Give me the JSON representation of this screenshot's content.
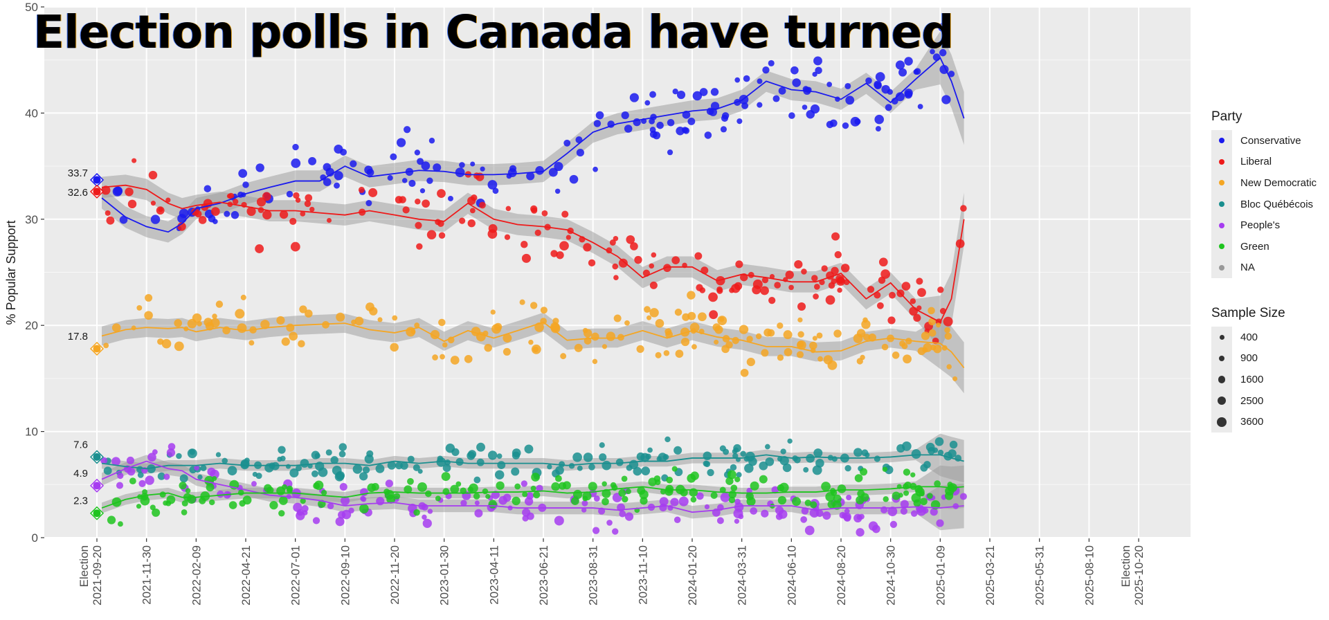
{
  "title": "Election polls in Canada have turned",
  "chart_data": {
    "type": "scatter",
    "title": "Election polls in Canada have turned",
    "xlabel": "",
    "ylabel": "% Popular Support",
    "ylim": [
      0,
      50
    ],
    "yticks": [
      "0",
      "10",
      "20",
      "30",
      "40",
      "50"
    ],
    "xlim": [
      "2021-09-01",
      "2025-11-30"
    ],
    "xticks": [
      {
        "date": "2021-09-20",
        "label": "Election\n2021-09-20"
      },
      {
        "date": "2021-11-30",
        "label": "2021-11-30"
      },
      {
        "date": "2022-02-09",
        "label": "2022-02-09"
      },
      {
        "date": "2022-04-21",
        "label": "2022-04-21"
      },
      {
        "date": "2022-07-01",
        "label": "2022-07-01"
      },
      {
        "date": "2022-09-10",
        "label": "2022-09-10"
      },
      {
        "date": "2022-11-20",
        "label": "2022-11-20"
      },
      {
        "date": "2023-01-30",
        "label": "2023-01-30"
      },
      {
        "date": "2023-04-11",
        "label": "2023-04-11"
      },
      {
        "date": "2023-06-21",
        "label": "2023-06-21"
      },
      {
        "date": "2023-08-31",
        "label": "2023-08-31"
      },
      {
        "date": "2023-11-10",
        "label": "2023-11-10"
      },
      {
        "date": "2024-01-20",
        "label": "2024-01-20"
      },
      {
        "date": "2024-03-31",
        "label": "2024-03-31"
      },
      {
        "date": "2024-06-10",
        "label": "2024-06-10"
      },
      {
        "date": "2024-08-20",
        "label": "2024-08-20"
      },
      {
        "date": "2024-10-30",
        "label": "2024-10-30"
      },
      {
        "date": "2025-01-09",
        "label": "2025-01-09"
      },
      {
        "date": "2025-03-21",
        "label": "2025-03-21"
      },
      {
        "date": "2025-05-31",
        "label": "2025-05-31"
      },
      {
        "date": "2025-08-10",
        "label": "2025-08-10"
      },
      {
        "date": "2025-10-20",
        "label": "Election\n2025-10-20"
      }
    ],
    "grid": true,
    "legend": {
      "party_title": "Party",
      "size_title": "Sample Size",
      "placement": "right",
      "size_entries": [
        "400",
        "900",
        "1600",
        "2500",
        "3600"
      ]
    },
    "election_2021": {
      "date": "2021-09-20",
      "results": [
        {
          "party": "Conservative",
          "value": 33.7,
          "label": "33.7"
        },
        {
          "party": "Liberal",
          "value": 32.6,
          "label": "32.6"
        },
        {
          "party": "New Democratic",
          "value": 17.8,
          "label": "17.8"
        },
        {
          "party": "Bloc Québécois",
          "value": 7.6,
          "label": "7.6"
        },
        {
          "party": "People's",
          "value": 4.9,
          "label": "4.9"
        },
        {
          "party": "Green",
          "value": 2.3,
          "label": "2.3"
        }
      ]
    },
    "trend_dates": [
      "2021-09-27",
      "2021-10-31",
      "2021-11-30",
      "2021-12-31",
      "2022-01-20",
      "2022-02-09",
      "2022-03-15",
      "2022-04-21",
      "2022-05-25",
      "2022-07-01",
      "2022-08-05",
      "2022-09-10",
      "2022-10-15",
      "2022-11-20",
      "2022-12-25",
      "2023-01-30",
      "2023-03-05",
      "2023-04-11",
      "2023-05-15",
      "2023-06-21",
      "2023-07-25",
      "2023-08-31",
      "2023-10-05",
      "2023-11-10",
      "2023-12-15",
      "2024-01-20",
      "2024-02-25",
      "2024-03-31",
      "2024-05-05",
      "2024-06-10",
      "2024-07-15",
      "2024-08-20",
      "2024-09-25",
      "2024-10-30",
      "2024-12-05",
      "2025-01-09",
      "2025-01-25",
      "2025-02-12"
    ],
    "series": [
      {
        "name": "Conservative",
        "color": "#1a1aee",
        "trend": [
          32.0,
          30.2,
          29.3,
          28.8,
          29.6,
          31.0,
          31.5,
          32.4,
          33.0,
          33.6,
          33.6,
          35.0,
          34.0,
          34.3,
          34.6,
          34.5,
          34.2,
          34.2,
          34.3,
          34.5,
          36.2,
          38.2,
          39.0,
          39.4,
          39.8,
          40.2,
          40.4,
          41.2,
          43.0,
          42.2,
          42.0,
          41.3,
          42.8,
          41.0,
          43.2,
          45.2,
          43.0,
          39.5
        ]
      },
      {
        "name": "Liberal",
        "color": "#ee1a1a",
        "trend": [
          33.0,
          33.2,
          32.8,
          31.5,
          31.0,
          31.3,
          31.6,
          31.2,
          30.8,
          30.8,
          30.6,
          30.4,
          30.8,
          30.4,
          30.0,
          29.8,
          31.5,
          30.0,
          29.5,
          29.3,
          29.0,
          27.8,
          26.5,
          24.5,
          25.5,
          25.5,
          24.2,
          24.8,
          24.5,
          24.1,
          24.1,
          24.9,
          22.5,
          24.0,
          21.5,
          20.3,
          22.5,
          30.0
        ]
      },
      {
        "name": "New Democratic",
        "color": "#f5a623",
        "trend": [
          19.0,
          19.6,
          19.8,
          19.7,
          19.8,
          19.4,
          19.8,
          19.5,
          19.8,
          20.0,
          20.1,
          20.2,
          19.6,
          19.3,
          19.8,
          18.5,
          19.5,
          18.8,
          19.5,
          20.3,
          18.6,
          18.8,
          18.8,
          19.5,
          18.8,
          19.5,
          18.9,
          18.6,
          18.0,
          18.0,
          17.5,
          17.6,
          18.5,
          18.8,
          18.5,
          18.3,
          17.5,
          16.0
        ]
      },
      {
        "name": "Bloc Québécois",
        "color": "#1a8f8f",
        "trend": [
          7.0,
          6.7,
          6.5,
          6.8,
          6.8,
          6.8,
          7.0,
          6.8,
          6.8,
          6.8,
          7.0,
          7.0,
          6.8,
          7.2,
          7.0,
          7.2,
          7.0,
          7.0,
          7.0,
          7.0,
          6.8,
          7.0,
          7.0,
          7.2,
          7.2,
          7.5,
          7.5,
          7.5,
          7.8,
          7.5,
          7.6,
          7.5,
          7.5,
          7.6,
          7.8,
          7.8,
          7.5,
          7.2
        ]
      },
      {
        "name": "People's",
        "color": "#a63cf0",
        "trend": [
          5.5,
          6.5,
          7.2,
          6.5,
          6.3,
          5.5,
          5.0,
          4.5,
          4.0,
          3.8,
          3.5,
          3.0,
          3.2,
          3.3,
          3.0,
          3.0,
          3.0,
          3.0,
          2.8,
          2.8,
          2.8,
          2.8,
          2.6,
          2.8,
          3.0,
          2.4,
          2.6,
          3.0,
          3.0,
          3.0,
          2.6,
          2.8,
          2.8,
          2.8,
          2.9,
          2.8,
          2.9,
          3.0
        ]
      },
      {
        "name": "Green",
        "color": "#1ec41e",
        "trend": [
          2.8,
          3.6,
          4.0,
          4.2,
          3.8,
          3.8,
          4.0,
          4.2,
          4.2,
          4.2,
          4.0,
          3.8,
          4.2,
          4.3,
          4.2,
          4.2,
          4.2,
          4.3,
          4.3,
          4.4,
          4.2,
          4.3,
          4.6,
          4.8,
          4.5,
          4.5,
          4.3,
          4.2,
          4.2,
          4.3,
          4.3,
          4.5,
          4.5,
          4.6,
          4.8,
          4.8,
          4.7,
          4.8
        ]
      },
      {
        "name": "NA",
        "color": "#999999",
        "trend": []
      }
    ]
  }
}
